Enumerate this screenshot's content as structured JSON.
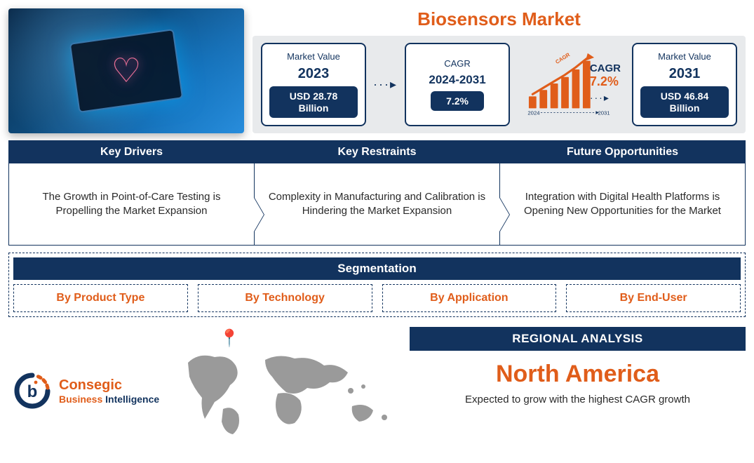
{
  "colors": {
    "navy": "#12335e",
    "orange": "#e05d1a",
    "greyBg": "#e8eaec",
    "mapGrey": "#9a9a9a",
    "white": "#ffffff",
    "text": "#2a2a2a"
  },
  "title": "Biosensors Market",
  "metrics": {
    "box1": {
      "label": "Market Value",
      "year": "2023",
      "value": "USD 28.78 Billion"
    },
    "box2": {
      "label": "CAGR",
      "year": "2024-2031",
      "value": "7.2%"
    },
    "growth": {
      "cagrText": "CAGR",
      "cagrLabel": "CAGR",
      "cagrValue": "7.2%",
      "xStart": "2024",
      "xEnd": "2031",
      "bars": [
        22,
        34,
        46,
        58,
        72,
        88
      ]
    },
    "box3": {
      "label": "Market Value",
      "year": "2031",
      "value": "USD 46.84 Billion"
    }
  },
  "factors": [
    {
      "head": "Key Drivers",
      "body": "The Growth in Point-of-Care Testing is Propelling the Market Expansion"
    },
    {
      "head": "Key Restraints",
      "body": "Complexity in Manufacturing and Calibration is Hindering the Market Expansion"
    },
    {
      "head": "Future Opportunities",
      "body": "Integration with Digital Health Platforms is Opening New Opportunities for the Market"
    }
  ],
  "segmentation": {
    "head": "Segmentation",
    "items": [
      "By Product Type",
      "By Technology",
      "By Application",
      "By End-User"
    ]
  },
  "logo": {
    "line1": "Consegic",
    "line2a": "Business ",
    "line2b": "Intelligence"
  },
  "regional": {
    "head": "REGIONAL ANALYSIS",
    "name": "North America",
    "sub": "Expected to grow with the highest CAGR growth"
  }
}
